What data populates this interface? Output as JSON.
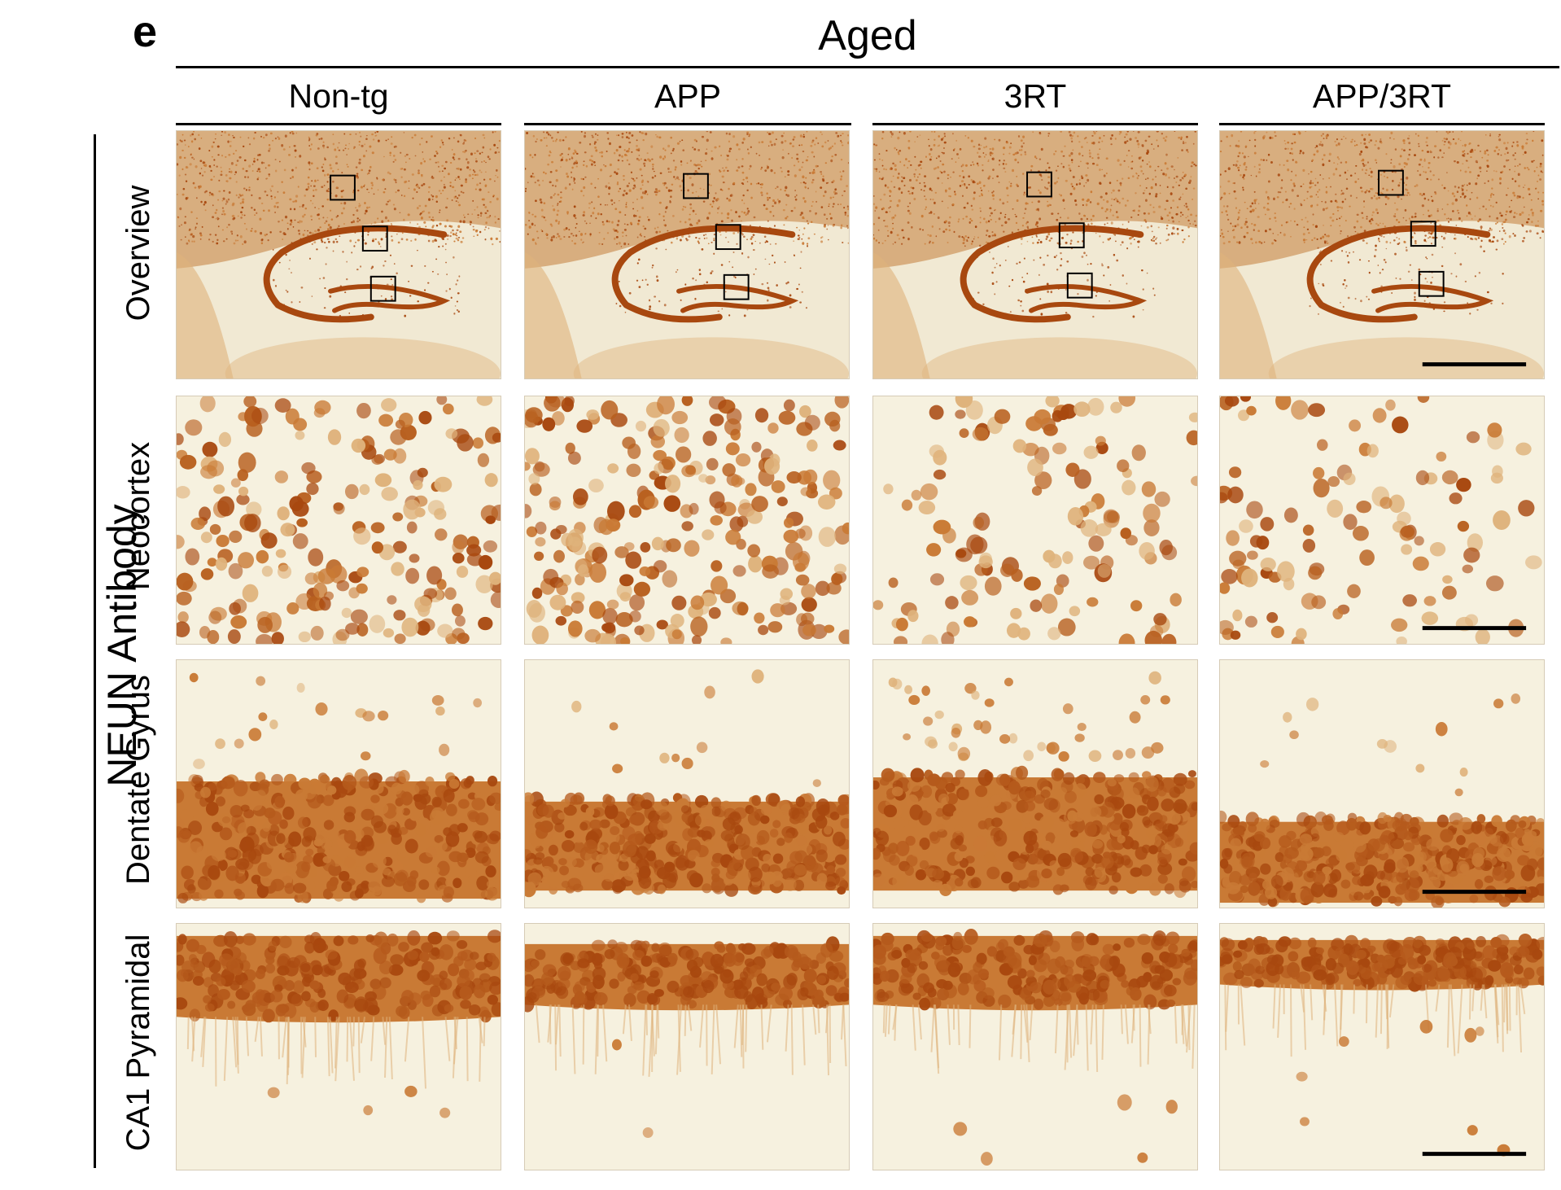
{
  "figure": {
    "panel_letter": "e",
    "group_title": "Aged",
    "antibody_label": "NEUN Antibody",
    "columns": [
      "Non-tg",
      "APP",
      "3RT",
      "APP/3RT"
    ],
    "rows": [
      "Overview",
      "Neocortex",
      "Dentate Gyrus",
      "CA1 Pyramidal"
    ],
    "cell_description": "Brightfield micrographs of mouse brain sections immunostained for NEUN (brown DAB stain)",
    "colors": {
      "tissue_background": "#f1e9d3",
      "cortex_stain": "#cf9a63",
      "stain_dark": "#a8480f",
      "stain_medium": "#c97a35",
      "stain_light": "#dfb37c",
      "white_matter": "#f6f0df"
    }
  }
}
